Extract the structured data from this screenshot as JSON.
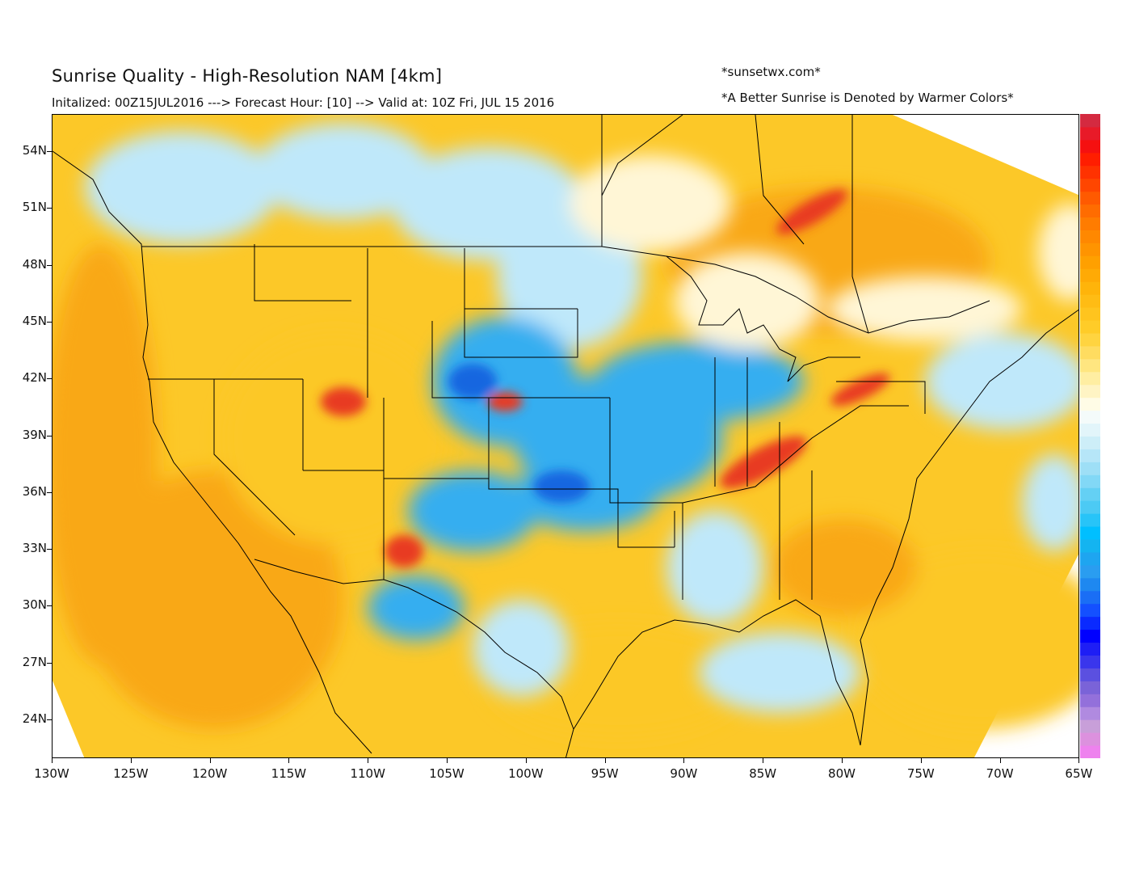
{
  "header": {
    "title": "Sunrise Quality - High-Resolution NAM [4km]",
    "subtitle": "Initalized: 00Z15JUL2016 ---> Forecast Hour: [10] --> Valid at: 10Z Fri, JUL 15 2016",
    "site": "*sunsetwx.com*",
    "note": "*A Better Sunrise is Denoted by Warmer Colors*"
  },
  "map": {
    "lat_labels": [
      "54N",
      "51N",
      "48N",
      "45N",
      "42N",
      "39N",
      "36N",
      "33N",
      "30N",
      "27N",
      "24N"
    ],
    "lon_labels": [
      "130W",
      "125W",
      "120W",
      "115W",
      "110W",
      "105W",
      "100W",
      "95W",
      "90W",
      "85W",
      "80W",
      "75W",
      "70W",
      "65W"
    ],
    "colors": {
      "warm_orange": "#f9a814",
      "warm_yellow": "#fcc828",
      "pale": "#fff6d6",
      "cool_light": "#bfe8fa",
      "cool_blue": "#35aef0",
      "deep_blue": "#1466e0",
      "hot_red": "#e83a20"
    }
  },
  "colorbar": {
    "colors": [
      "#ee82ee",
      "#dc91de",
      "#c89fd9",
      "#b08ae0",
      "#9370db",
      "#7a63d8",
      "#5b50e0",
      "#3a36ec",
      "#1e1ef5",
      "#0000ff",
      "#0a2aff",
      "#1450ff",
      "#1a6ef5",
      "#1e88f0",
      "#2a9df0",
      "#1ea5f0",
      "#14b4f0",
      "#00bfff",
      "#28c4f8",
      "#4ccaf4",
      "#64d0f4",
      "#82d8f6",
      "#9edff6",
      "#b6e6f8",
      "#cdeef8",
      "#e2f5fa",
      "#f4fbfa",
      "#fffce6",
      "#fff4c4",
      "#ffeea2",
      "#ffe680",
      "#ffdc60",
      "#ffd440",
      "#ffcc28",
      "#ffc41e",
      "#ffbc14",
      "#ffb40a",
      "#ffaa05",
      "#ffa000",
      "#ff9400",
      "#ff8800",
      "#ff7c00",
      "#ff6c00",
      "#ff5a00",
      "#ff4600",
      "#ff3200",
      "#ff1e00",
      "#f51010",
      "#e81a28",
      "#d42a40"
    ]
  }
}
